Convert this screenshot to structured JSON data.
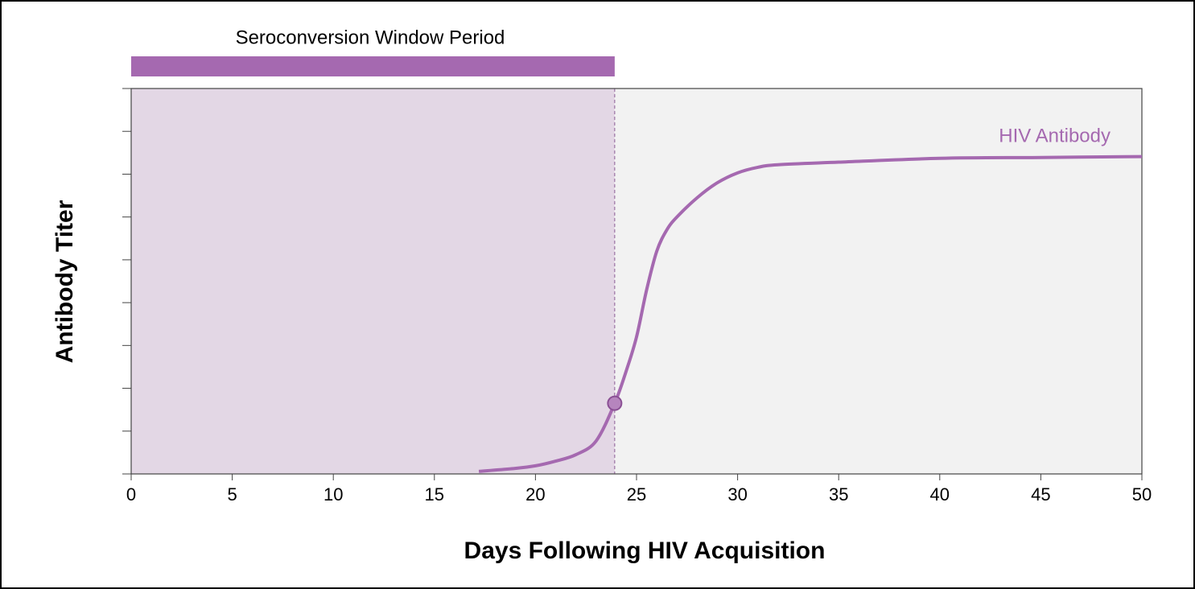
{
  "chart_data": {
    "type": "line",
    "xlabel": "Days Following HIV Acquisition",
    "ylabel": "Antibody Titer",
    "x": [
      17.2,
      19,
      20,
      21,
      22,
      23,
      23.92,
      24.5,
      25,
      25.5,
      26,
      26.5,
      27,
      28,
      29,
      30,
      31,
      32,
      35,
      40,
      45,
      50
    ],
    "series": [
      {
        "name": "HIV Antibody",
        "color": "#a569b0",
        "values": [
          0.06,
          0.13,
          0.19,
          0.3,
          0.45,
          0.77,
          1.65,
          2.42,
          3.2,
          4.3,
          5.2,
          5.7,
          6.0,
          6.45,
          6.8,
          7.03,
          7.16,
          7.22,
          7.28,
          7.37,
          7.39,
          7.41
        ]
      }
    ],
    "marker": {
      "x": 23.92,
      "y": 1.65
    },
    "window": {
      "label": "Seroconversion Window Period",
      "start": 0,
      "end": 23.92,
      "color": "#a569b0",
      "shade": "#e3d7e5"
    },
    "background": "#f2f2f2",
    "xlim": [
      0,
      50
    ],
    "xticks": [
      0,
      5,
      10,
      15,
      20,
      25,
      30,
      35,
      40,
      45,
      50
    ],
    "ylim": [
      0,
      9
    ],
    "yticks": [
      0,
      1,
      2,
      3,
      4,
      5,
      6,
      7,
      8,
      9
    ]
  }
}
